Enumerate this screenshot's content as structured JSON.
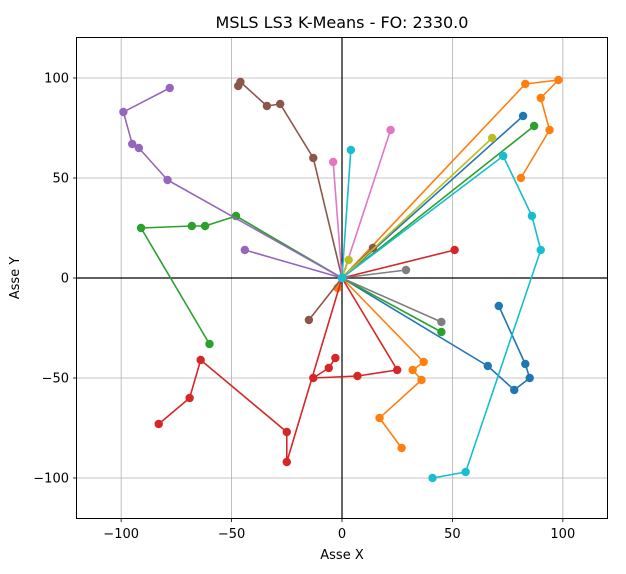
{
  "chart_data": {
    "type": "line",
    "title": "MSLS LS3 K-Means - FO: 2330.0",
    "xlabel": "Asse X",
    "ylabel": "Asse Y",
    "xlim": [
      -120,
      120
    ],
    "ylim": [
      -120,
      120
    ],
    "x_ticks": [
      -100,
      -50,
      0,
      50,
      100
    ],
    "y_ticks": [
      -100,
      -50,
      0,
      50,
      100
    ],
    "x_tick_labels": [
      "−100",
      "−50",
      "0",
      "50",
      "100"
    ],
    "y_tick_labels": [
      "−100",
      "−50",
      "0",
      "50",
      "100"
    ],
    "grid": true,
    "origin_lines": true,
    "depot": [
      0,
      0
    ],
    "series": [
      {
        "color": "#1f77b4",
        "points": [
          [
            0,
            0
          ],
          [
            82,
            81
          ]
        ]
      },
      {
        "color": "#1f77b4",
        "points": [
          [
            0,
            0
          ],
          [
            66,
            -44
          ],
          [
            78,
            -56
          ],
          [
            85,
            -50
          ],
          [
            83,
            -43
          ],
          [
            71,
            -14
          ]
        ]
      },
      {
        "color": "#ff7f0e",
        "points": [
          [
            0,
            0
          ],
          [
            83,
            97
          ],
          [
            98,
            99
          ],
          [
            90,
            90
          ],
          [
            94,
            74
          ],
          [
            81,
            50
          ]
        ]
      },
      {
        "color": "#ff7f0e",
        "points": [
          [
            0,
            0
          ],
          [
            37,
            -42
          ],
          [
            32,
            -46
          ],
          [
            36,
            -51
          ],
          [
            17,
            -70
          ],
          [
            27,
            -85
          ]
        ]
      },
      {
        "color": "#ff7f0e",
        "points": [
          [
            0,
            0
          ],
          [
            -2,
            -5
          ]
        ]
      },
      {
        "color": "#2ca02c",
        "points": [
          [
            0,
            0
          ],
          [
            87,
            76
          ]
        ]
      },
      {
        "color": "#2ca02c",
        "points": [
          [
            0,
            0
          ],
          [
            45,
            -27
          ]
        ]
      },
      {
        "color": "#2ca02c",
        "points": [
          [
            0,
            0
          ],
          [
            -48,
            31
          ],
          [
            -62,
            26
          ],
          [
            -68,
            26
          ],
          [
            -91,
            25
          ],
          [
            -60,
            -33
          ]
        ]
      },
      {
        "color": "#d62728",
        "points": [
          [
            0,
            0
          ],
          [
            51,
            14
          ]
        ]
      },
      {
        "color": "#d62728",
        "points": [
          [
            0,
            0
          ],
          [
            25,
            -46
          ],
          [
            7,
            -49
          ],
          [
            -13,
            -50
          ],
          [
            -6,
            -45
          ],
          [
            -3,
            -40
          ]
        ]
      },
      {
        "color": "#d62728",
        "points": [
          [
            0,
            0
          ],
          [
            -25,
            -92
          ],
          [
            -25,
            -77
          ],
          [
            -64,
            -41
          ],
          [
            -69,
            -60
          ],
          [
            -83,
            -73
          ]
        ]
      },
      {
        "color": "#9467bd",
        "points": [
          [
            0,
            0
          ],
          [
            -44,
            14
          ]
        ]
      },
      {
        "color": "#9467bd",
        "points": [
          [
            0,
            0
          ],
          [
            -79,
            49
          ],
          [
            -92,
            65
          ],
          [
            -95,
            67
          ],
          [
            -99,
            83
          ],
          [
            -78,
            95
          ]
        ]
      },
      {
        "color": "#8c564b",
        "points": [
          [
            0,
            0
          ],
          [
            -13,
            60
          ],
          [
            -28,
            87
          ],
          [
            -34,
            86
          ],
          [
            -46,
            98
          ],
          [
            -47,
            96
          ]
        ]
      },
      {
        "color": "#8c564b",
        "points": [
          [
            0,
            0
          ],
          [
            -15,
            -21
          ]
        ]
      },
      {
        "color": "#8c564b",
        "points": [
          [
            0,
            0
          ],
          [
            14,
            15
          ]
        ]
      },
      {
        "color": "#e377c2",
        "points": [
          [
            0,
            0
          ],
          [
            -4,
            58
          ]
        ]
      },
      {
        "color": "#e377c2",
        "points": [
          [
            0,
            0
          ],
          [
            22,
            74
          ]
        ]
      },
      {
        "color": "#7f7f7f",
        "points": [
          [
            0,
            0
          ],
          [
            29,
            4
          ]
        ]
      },
      {
        "color": "#7f7f7f",
        "points": [
          [
            0,
            0
          ],
          [
            45,
            -22
          ]
        ]
      },
      {
        "color": "#bcbd22",
        "points": [
          [
            0,
            0
          ],
          [
            3,
            9
          ]
        ]
      },
      {
        "color": "#bcbd22",
        "points": [
          [
            0,
            0
          ],
          [
            68,
            70
          ]
        ]
      },
      {
        "color": "#17becf",
        "points": [
          [
            0,
            0
          ],
          [
            4,
            64
          ]
        ]
      },
      {
        "color": "#17becf",
        "points": [
          [
            0,
            0
          ],
          [
            73,
            61
          ],
          [
            86,
            31
          ],
          [
            90,
            14
          ],
          [
            56,
            -97
          ],
          [
            41,
            -100
          ]
        ]
      }
    ]
  }
}
